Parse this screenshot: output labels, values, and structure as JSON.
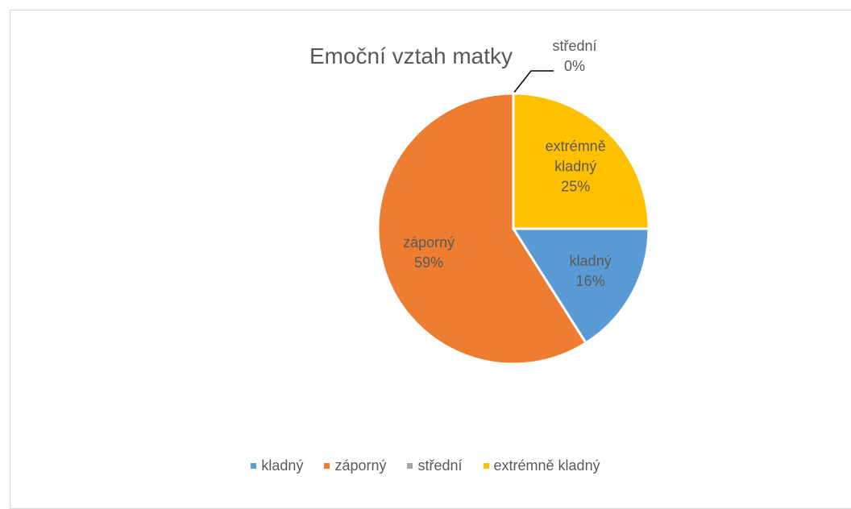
{
  "chart_data": {
    "type": "pie",
    "title": "Emoční vztah matky",
    "categories": [
      "kladný",
      "záporný",
      "střední",
      "extrémně kladný"
    ],
    "values": [
      16,
      59,
      0,
      25
    ],
    "value_labels": [
      "16%",
      "59%",
      "0%",
      "25%"
    ],
    "colors": [
      "#5b9bd5",
      "#ed7d31",
      "#a5a5a5",
      "#ffc000"
    ],
    "legend": "bottom"
  }
}
